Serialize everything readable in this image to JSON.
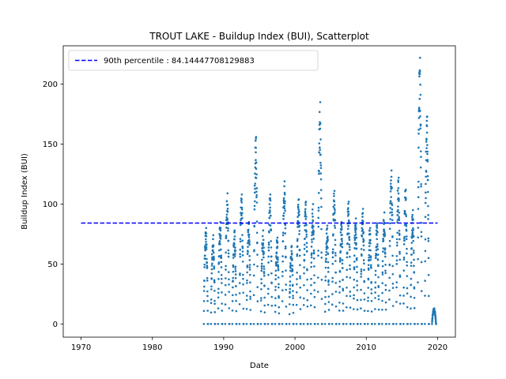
{
  "chart_data": {
    "type": "scatter",
    "title": "TROUT LAKE - Buildup Index (BUI), Scatterplot",
    "xlabel": "Date",
    "ylabel": "Buildup Index (BUI)",
    "xlim": [
      1967.5,
      2022.5
    ],
    "ylim": [
      -11,
      232
    ],
    "xticks": [
      1970,
      1980,
      1990,
      2000,
      2010,
      2020
    ],
    "yticks": [
      0,
      50,
      100,
      150,
      200
    ],
    "grid": false,
    "legend_position": "top-left",
    "point_color": "#1f77b4",
    "reference_line": {
      "label": "90th percentile : 84.14447708129883",
      "value": 84.14447708129883,
      "x_range": [
        1970,
        2020
      ],
      "color": "#0000ff",
      "style": "dashed"
    },
    "season_peaks": [
      {
        "year": 1987,
        "peak": 80
      },
      {
        "year": 1988,
        "peak": 74
      },
      {
        "year": 1989,
        "peak": 85
      },
      {
        "year": 1990,
        "peak": 109
      },
      {
        "year": 1991,
        "peak": 78
      },
      {
        "year": 1992,
        "peak": 108
      },
      {
        "year": 1993,
        "peak": 85
      },
      {
        "year": 1994,
        "peak": 156
      },
      {
        "year": 1995,
        "peak": 78
      },
      {
        "year": 1996,
        "peak": 108
      },
      {
        "year": 1997,
        "peak": 72
      },
      {
        "year": 1998,
        "peak": 119
      },
      {
        "year": 1999,
        "peak": 65
      },
      {
        "year": 2000,
        "peak": 104
      },
      {
        "year": 2001,
        "peak": 102
      },
      {
        "year": 2002,
        "peak": 100
      },
      {
        "year": 2003,
        "peak": 185
      },
      {
        "year": 2004,
        "peak": 82
      },
      {
        "year": 2005,
        "peak": 111
      },
      {
        "year": 2006,
        "peak": 85
      },
      {
        "year": 2007,
        "peak": 102
      },
      {
        "year": 2008,
        "peak": 88
      },
      {
        "year": 2009,
        "peak": 96
      },
      {
        "year": 2010,
        "peak": 80
      },
      {
        "year": 2011,
        "peak": 84
      },
      {
        "year": 2012,
        "peak": 93
      },
      {
        "year": 2013,
        "peak": 128
      },
      {
        "year": 2014,
        "peak": 122
      },
      {
        "year": 2015,
        "peak": 112
      },
      {
        "year": 2016,
        "peak": 95
      },
      {
        "year": 2017,
        "peak": 222
      },
      {
        "year": 2018,
        "peak": 173
      },
      {
        "year": 2019,
        "peak": 13
      }
    ]
  }
}
